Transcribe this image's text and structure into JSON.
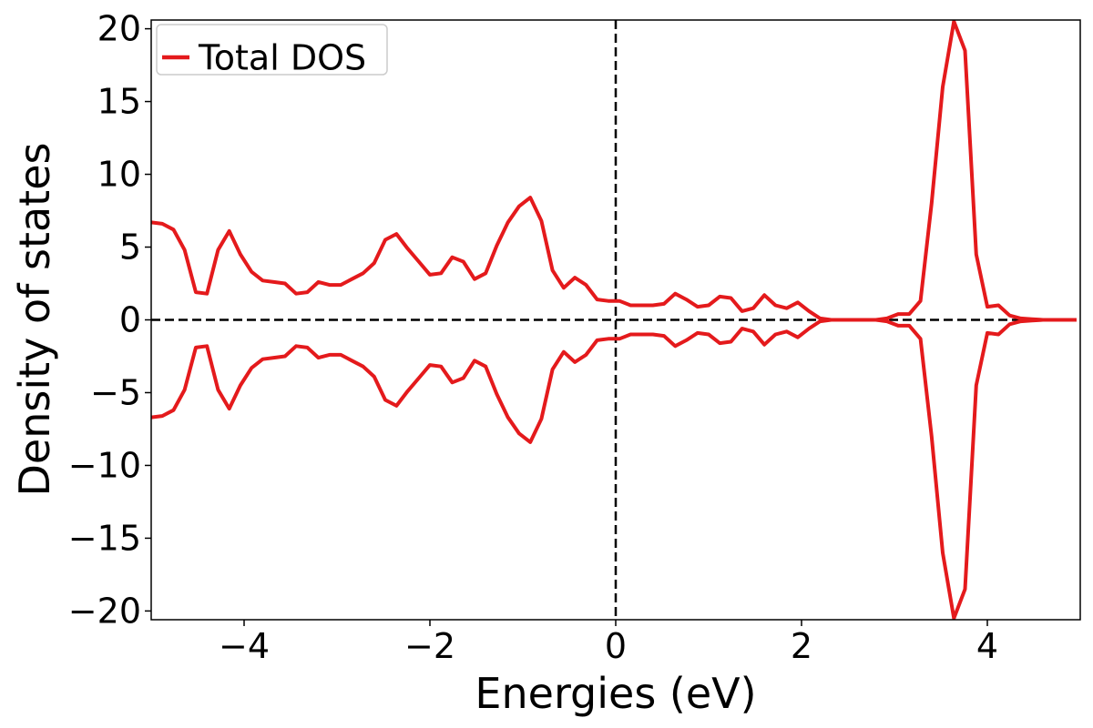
{
  "chart_data": {
    "type": "line",
    "title": "",
    "xlabel": "Energies (eV)",
    "ylabel": "Density of states",
    "xlim": [
      -5,
      5
    ],
    "ylim": [
      -20.6,
      20.6
    ],
    "xticks": [
      -4,
      -2,
      0,
      2,
      4
    ],
    "xtick_labels": [
      "−4",
      "−2",
      "0",
      "2",
      "4"
    ],
    "yticks": [
      -20,
      -15,
      -10,
      -5,
      0,
      5,
      10,
      15,
      20
    ],
    "ytick_labels": [
      "−20",
      "−15",
      "−10",
      "−5",
      "0",
      "5",
      "10",
      "15",
      "20"
    ],
    "grid": false,
    "legend_position": "top-left",
    "reference_lines": {
      "vertical_x": 0,
      "horizontal_y": 0,
      "color": "#000000",
      "style": "dashed"
    },
    "series": [
      {
        "name": "Total DOS",
        "color": "#e41a1c",
        "spin_mirrored": true,
        "x": [
          -5.0,
          -4.88,
          -4.76,
          -4.64,
          -4.52,
          -4.4,
          -4.28,
          -4.16,
          -4.04,
          -3.92,
          -3.8,
          -3.68,
          -3.56,
          -3.44,
          -3.32,
          -3.2,
          -3.08,
          -2.96,
          -2.84,
          -2.72,
          -2.6,
          -2.48,
          -2.36,
          -2.24,
          -2.12,
          -2.0,
          -1.88,
          -1.76,
          -1.64,
          -1.52,
          -1.4,
          -1.28,
          -1.16,
          -1.04,
          -0.92,
          -0.8,
          -0.68,
          -0.56,
          -0.44,
          -0.32,
          -0.2,
          -0.08,
          0.04,
          0.16,
          0.28,
          0.4,
          0.52,
          0.64,
          0.76,
          0.88,
          1.0,
          1.12,
          1.24,
          1.36,
          1.48,
          1.6,
          1.72,
          1.84,
          1.96,
          2.08,
          2.2,
          2.32,
          2.44,
          2.56,
          2.68,
          2.8,
          2.92,
          3.04,
          3.16,
          3.28,
          3.4,
          3.52,
          3.64,
          3.76,
          3.88,
          4.0,
          4.12,
          4.24,
          4.36,
          4.48,
          4.6,
          4.72,
          4.84,
          4.96
        ],
        "values": [
          6.7,
          6.6,
          6.2,
          4.8,
          1.9,
          1.8,
          4.8,
          6.1,
          4.5,
          3.3,
          2.7,
          2.6,
          2.5,
          1.8,
          1.9,
          2.6,
          2.4,
          2.4,
          2.8,
          3.2,
          3.9,
          5.5,
          5.9,
          4.9,
          4.0,
          3.1,
          3.2,
          4.3,
          4.0,
          2.8,
          3.2,
          5.1,
          6.7,
          7.8,
          8.4,
          6.8,
          3.4,
          2.2,
          2.9,
          2.4,
          1.4,
          1.3,
          1.3,
          1.0,
          1.0,
          1.0,
          1.1,
          1.8,
          1.4,
          0.9,
          1.0,
          1.6,
          1.5,
          0.6,
          0.8,
          1.7,
          1.0,
          0.8,
          1.2,
          0.6,
          0.1,
          0.0,
          0.0,
          0.0,
          0.0,
          0.0,
          0.1,
          0.4,
          0.4,
          1.3,
          8.0,
          16.0,
          20.5,
          18.5,
          4.5,
          0.9,
          1.0,
          0.3,
          0.1,
          0.05,
          0.0,
          0.0,
          0.0,
          0.0
        ]
      }
    ]
  }
}
